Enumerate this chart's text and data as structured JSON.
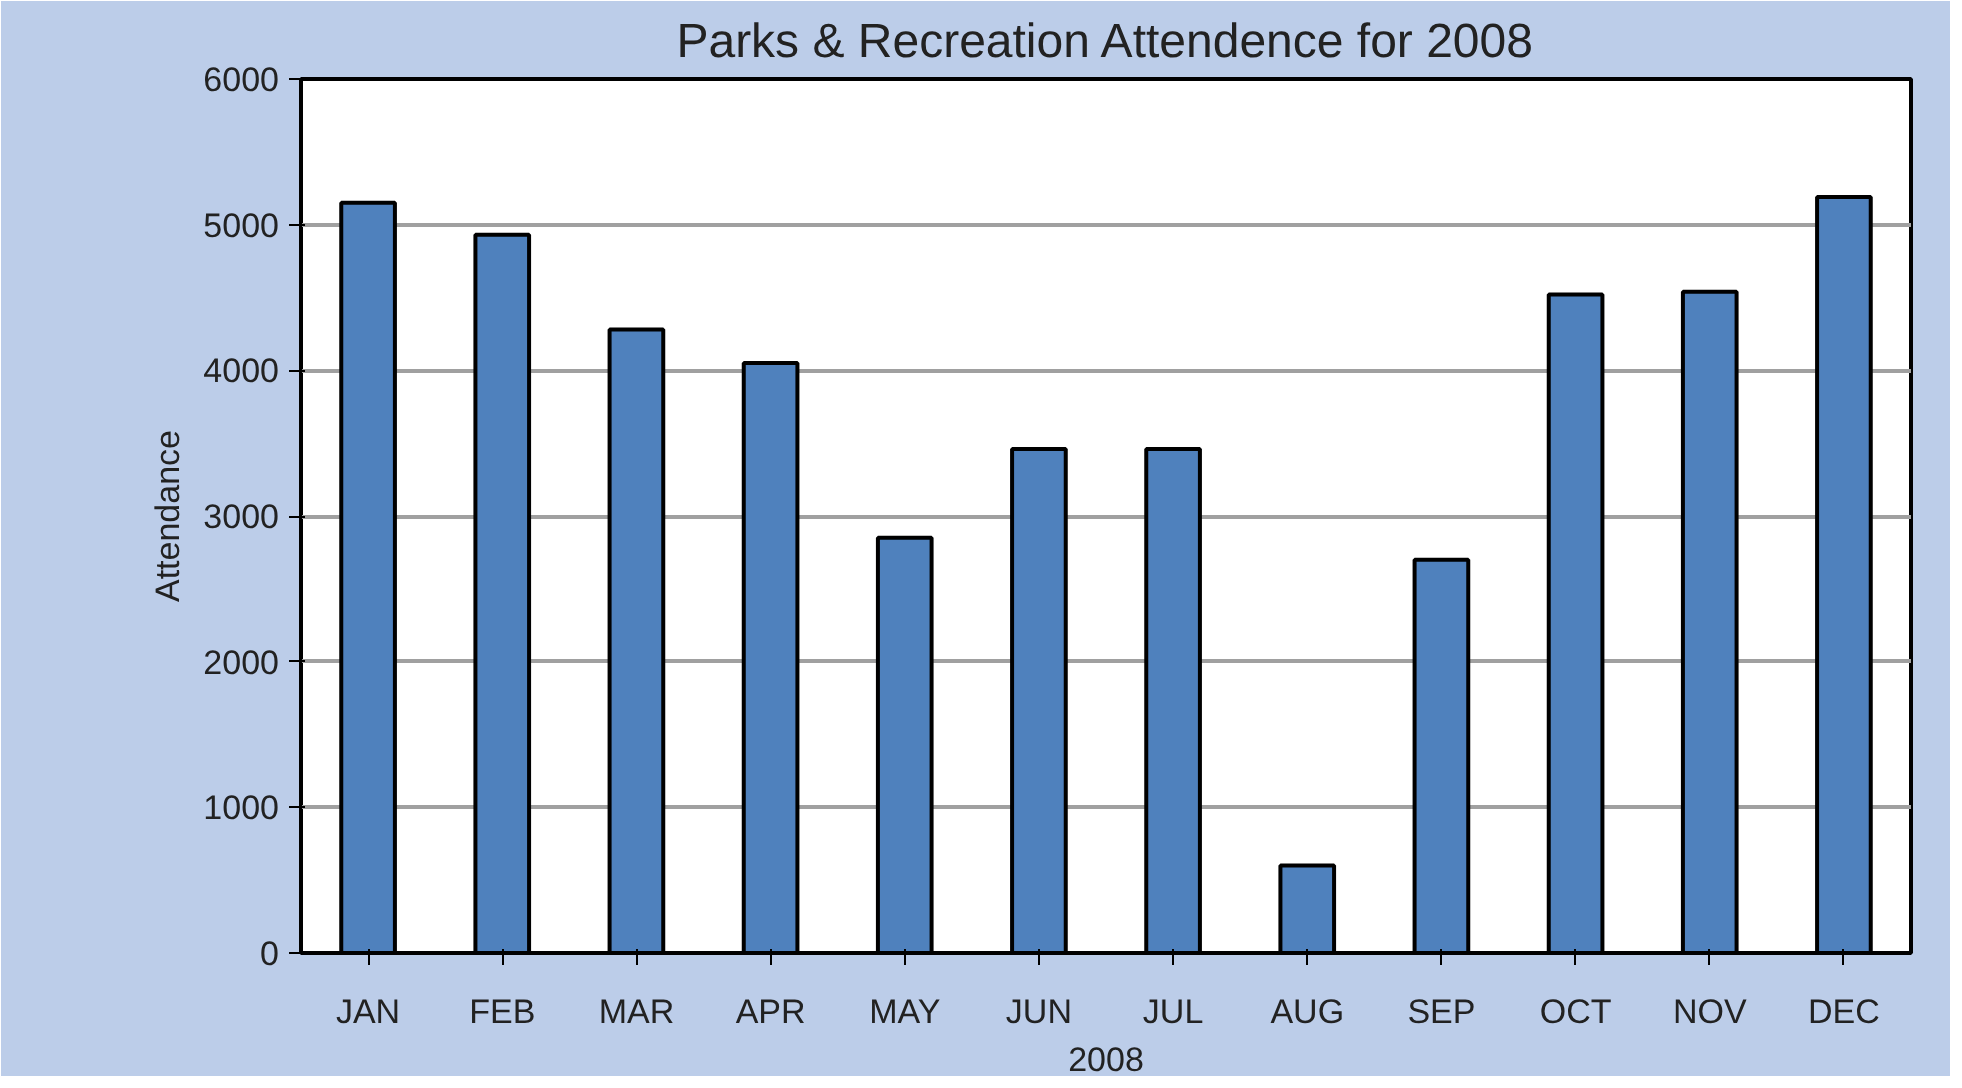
{
  "chart_data": {
    "type": "bar",
    "title": "Parks & Recreation Attendence for 2008",
    "xlabel": "2008",
    "ylabel": "Attendance",
    "categories": [
      "JAN",
      "FEB",
      "MAR",
      "APR",
      "MAY",
      "JUN",
      "JUL",
      "AUG",
      "SEP",
      "OCT",
      "NOV",
      "DEC"
    ],
    "values": [
      5150,
      4930,
      4280,
      4050,
      2850,
      3460,
      3460,
      600,
      2700,
      4520,
      4540,
      5190
    ],
    "color": "#4f81bd",
    "ylim": [
      0,
      6000
    ],
    "yticks": [
      0,
      1000,
      2000,
      3000,
      4000,
      5000,
      6000
    ],
    "grid": "y"
  }
}
